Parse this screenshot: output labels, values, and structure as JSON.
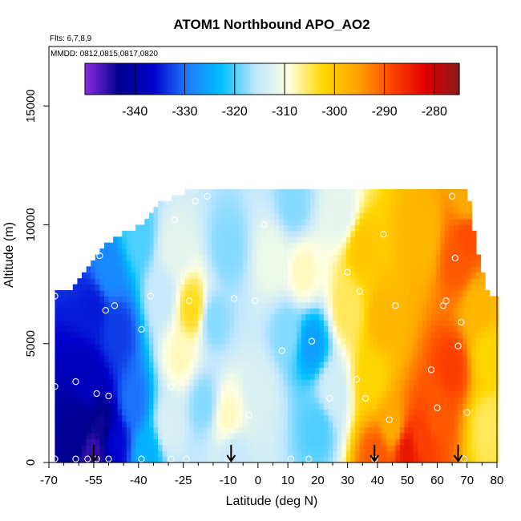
{
  "chart_data": {
    "type": "heatmap",
    "title": "ATOM1 Northbound APO_AO2",
    "flights_label": "Flts: 6,7,8,9",
    "dates_label": "MMDD: 0812,0815,0817,0820",
    "xlabel": "Latitude (deg N)",
    "ylabel": "Altitude (m)",
    "xlim": [
      -70,
      80
    ],
    "ylim": [
      0,
      17500
    ],
    "x_ticks": [
      -70,
      -55,
      -40,
      -25,
      -10,
      0,
      10,
      20,
      30,
      40,
      50,
      60,
      70,
      80
    ],
    "x_minor_ticks": [
      -65,
      -60,
      -50,
      -45,
      -35,
      -30,
      -20,
      -15,
      -5,
      5,
      15,
      25,
      35,
      45,
      55,
      65,
      75
    ],
    "y_ticks": [
      0,
      5000,
      10000,
      15000
    ],
    "colorbar": {
      "min": -350,
      "max": -275,
      "ticks": [
        -340,
        -330,
        -320,
        -310,
        -300,
        -290,
        -280
      ],
      "colors": [
        "#8a2be2",
        "#00008b",
        "#0000cd",
        "#1e7bff",
        "#00bfff",
        "#bfe6ff",
        "#ffffe0",
        "#ffd700",
        "#ffa500",
        "#ff4500",
        "#e00000",
        "#8b1a1a"
      ]
    },
    "region_profile": [
      {
        "lat": -68,
        "top": 7000
      },
      {
        "lat": -62,
        "top": 7200
      },
      {
        "lat": -57,
        "top": 8200
      },
      {
        "lat": -52,
        "top": 9000
      },
      {
        "lat": -45,
        "top": 9500
      },
      {
        "lat": -38,
        "top": 10000
      },
      {
        "lat": -33,
        "top": 10800
      },
      {
        "lat": -25,
        "top": 11200
      },
      {
        "lat": -22,
        "top": 11500
      },
      {
        "lat": 28,
        "top": 11500
      },
      {
        "lat": 70,
        "top": 11500
      },
      {
        "lat": 73,
        "top": 9000
      },
      {
        "lat": 77,
        "top": 7000
      },
      {
        "lat": 80,
        "top": 7000
      }
    ],
    "field_anchors": [
      {
        "lat": -60,
        "alt": 1500,
        "value": -342
      },
      {
        "lat": -57,
        "alt": 3500,
        "value": -338
      },
      {
        "lat": -55,
        "alt": 500,
        "value": -346
      },
      {
        "lat": -52,
        "alt": 1500,
        "value": -344
      },
      {
        "lat": -48,
        "alt": 1000,
        "value": -336
      },
      {
        "lat": -42,
        "alt": 2500,
        "value": -330
      },
      {
        "lat": -47,
        "alt": 5500,
        "value": -333
      },
      {
        "lat": -55,
        "alt": 6500,
        "value": -335
      },
      {
        "lat": -50,
        "alt": 8000,
        "value": -328
      },
      {
        "lat": -40,
        "alt": 9500,
        "value": -320
      },
      {
        "lat": -37,
        "alt": 500,
        "value": -324
      },
      {
        "lat": -30,
        "alt": 1500,
        "value": -313
      },
      {
        "lat": -26,
        "alt": 4500,
        "value": -308
      },
      {
        "lat": -32,
        "alt": 7000,
        "value": -315
      },
      {
        "lat": -28,
        "alt": 9000,
        "value": -312
      },
      {
        "lat": -22,
        "alt": 6500,
        "value": -303
      },
      {
        "lat": -15,
        "alt": 6000,
        "value": -318
      },
      {
        "lat": -10,
        "alt": 9000,
        "value": -318
      },
      {
        "lat": -18,
        "alt": 2500,
        "value": -318
      },
      {
        "lat": -10,
        "alt": 2000,
        "value": -308
      },
      {
        "lat": -8,
        "alt": 300,
        "value": -315
      },
      {
        "lat": 0,
        "alt": 3000,
        "value": -313
      },
      {
        "lat": 5,
        "alt": 8500,
        "value": -311
      },
      {
        "lat": 15,
        "alt": 8000,
        "value": -308
      },
      {
        "lat": 18,
        "alt": 5000,
        "value": -326
      },
      {
        "lat": 10,
        "alt": 5500,
        "value": -318
      },
      {
        "lat": 20,
        "alt": 1500,
        "value": -320
      },
      {
        "lat": 25,
        "alt": 3000,
        "value": -314
      },
      {
        "lat": 12,
        "alt": 10800,
        "value": -318
      },
      {
        "lat": 28,
        "alt": 10500,
        "value": -312
      },
      {
        "lat": 30,
        "alt": 6500,
        "value": -305
      },
      {
        "lat": 35,
        "alt": 9000,
        "value": -300
      },
      {
        "lat": 42,
        "alt": 6000,
        "value": -298
      },
      {
        "lat": 38,
        "alt": 3500,
        "value": -302
      },
      {
        "lat": 45,
        "alt": 1500,
        "value": -296
      },
      {
        "lat": 40,
        "alt": 300,
        "value": -290
      },
      {
        "lat": 50,
        "alt": 500,
        "value": -284
      },
      {
        "lat": 55,
        "alt": 1000,
        "value": -288
      },
      {
        "lat": 60,
        "alt": 2000,
        "value": -290
      },
      {
        "lat": 65,
        "alt": 4000,
        "value": -288
      },
      {
        "lat": 67,
        "alt": 8500,
        "value": -290
      },
      {
        "lat": 70,
        "alt": 9500,
        "value": -289
      },
      {
        "lat": 70,
        "alt": 11000,
        "value": -296
      },
      {
        "lat": 74,
        "alt": 6500,
        "value": -298
      },
      {
        "lat": 77,
        "alt": 1500,
        "value": -305
      },
      {
        "lat": 77,
        "alt": 4500,
        "value": -302
      },
      {
        "lat": 55,
        "alt": 9500,
        "value": -298
      }
    ],
    "observation_points": [
      {
        "lat": -68,
        "alt": 150
      },
      {
        "lat": -68,
        "alt": 3200
      },
      {
        "lat": -68,
        "alt": 7000
      },
      {
        "lat": -61,
        "alt": 150
      },
      {
        "lat": -61,
        "alt": 3400
      },
      {
        "lat": -57,
        "alt": 150
      },
      {
        "lat": -54,
        "alt": 150
      },
      {
        "lat": -54,
        "alt": 2900
      },
      {
        "lat": -50,
        "alt": 150
      },
      {
        "lat": -50,
        "alt": 2800
      },
      {
        "lat": -51,
        "alt": 6400
      },
      {
        "lat": -53,
        "alt": 8700
      },
      {
        "lat": -48,
        "alt": 6600
      },
      {
        "lat": -39,
        "alt": 150
      },
      {
        "lat": -39,
        "alt": 5600
      },
      {
        "lat": -36,
        "alt": 7000
      },
      {
        "lat": -29,
        "alt": 150
      },
      {
        "lat": -29,
        "alt": 3200
      },
      {
        "lat": -28,
        "alt": 10200
      },
      {
        "lat": -24,
        "alt": 150
      },
      {
        "lat": -25,
        "alt": 3700
      },
      {
        "lat": -23,
        "alt": 6800
      },
      {
        "lat": -21,
        "alt": 11000
      },
      {
        "lat": -17,
        "alt": 11200
      },
      {
        "lat": -10,
        "alt": 150
      },
      {
        "lat": -8,
        "alt": 6900
      },
      {
        "lat": -3,
        "alt": 2000
      },
      {
        "lat": -1,
        "alt": 6800
      },
      {
        "lat": 2,
        "alt": 10000
      },
      {
        "lat": 8,
        "alt": 4700
      },
      {
        "lat": 11,
        "alt": 150
      },
      {
        "lat": 17,
        "alt": 150
      },
      {
        "lat": 18,
        "alt": 5100
      },
      {
        "lat": 20,
        "alt": 8800
      },
      {
        "lat": 24,
        "alt": 2700
      },
      {
        "lat": 30,
        "alt": 8000
      },
      {
        "lat": 33,
        "alt": 3500
      },
      {
        "lat": 34,
        "alt": 7200
      },
      {
        "lat": 36,
        "alt": 2700
      },
      {
        "lat": 39,
        "alt": 150
      },
      {
        "lat": 42,
        "alt": 9600
      },
      {
        "lat": 44,
        "alt": 1800
      },
      {
        "lat": 46,
        "alt": 6600
      },
      {
        "lat": 58,
        "alt": 3900
      },
      {
        "lat": 60,
        "alt": 2300
      },
      {
        "lat": 62,
        "alt": 6600
      },
      {
        "lat": 63,
        "alt": 6800
      },
      {
        "lat": 65,
        "alt": 11200
      },
      {
        "lat": 66,
        "alt": 8600
      },
      {
        "lat": 67,
        "alt": 4900
      },
      {
        "lat": 68,
        "alt": 5900
      },
      {
        "lat": 69,
        "alt": 150
      },
      {
        "lat": 70,
        "alt": 2100
      }
    ],
    "arrow_latitudes": [
      -55,
      -9,
      39,
      67
    ]
  }
}
